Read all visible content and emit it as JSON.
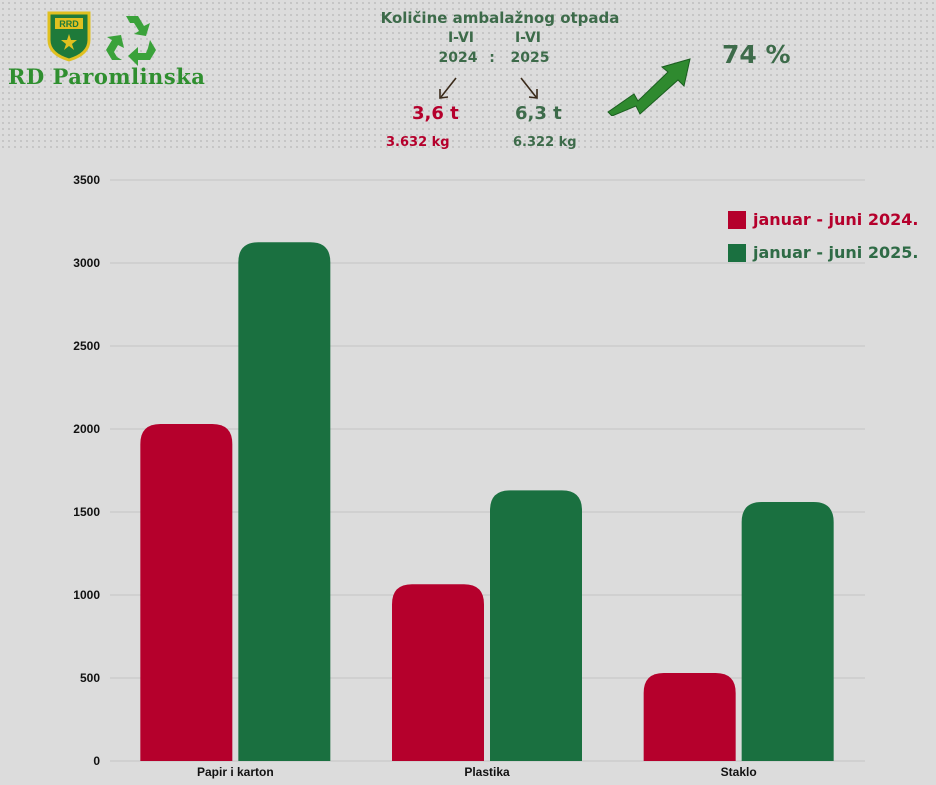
{
  "header": {
    "logo_badge": "RRD",
    "logo_text": "RD Paromlinska",
    "title": "Količine ambalažnog otpada",
    "period_left": "I-VI",
    "period_right": "I-VI",
    "year_left": "2024",
    "year_right": "2025",
    "separator": ":",
    "tons_left": "3,6 t",
    "kg_left": "3.632 kg",
    "tons_right": "6,3 t",
    "kg_right": "6.322 kg",
    "growth": "74 %"
  },
  "colors": {
    "series_2024": "#b5002c",
    "series_2025": "#1a7040",
    "legend_2024_text": "#b5002c",
    "legend_2025_text": "#2f6b46",
    "grid": "#c4c4c4",
    "axis_text": "#111111"
  },
  "chart_data": {
    "type": "bar",
    "title": "",
    "xlabel": "",
    "ylabel": "",
    "categories": [
      "Papir i karton",
      "Plastika",
      "Staklo"
    ],
    "series": [
      {
        "name": "januar - juni 2024.",
        "values": [
          2030,
          1065,
          530
        ]
      },
      {
        "name": "januar - juni 2025.",
        "values": [
          3125,
          1630,
          1560
        ]
      }
    ],
    "ylim": [
      0,
      3500
    ],
    "yticks": [
      0,
      500,
      1000,
      1500,
      2000,
      2500,
      3000,
      3500
    ],
    "grid": true,
    "legend_position": "top-right"
  }
}
